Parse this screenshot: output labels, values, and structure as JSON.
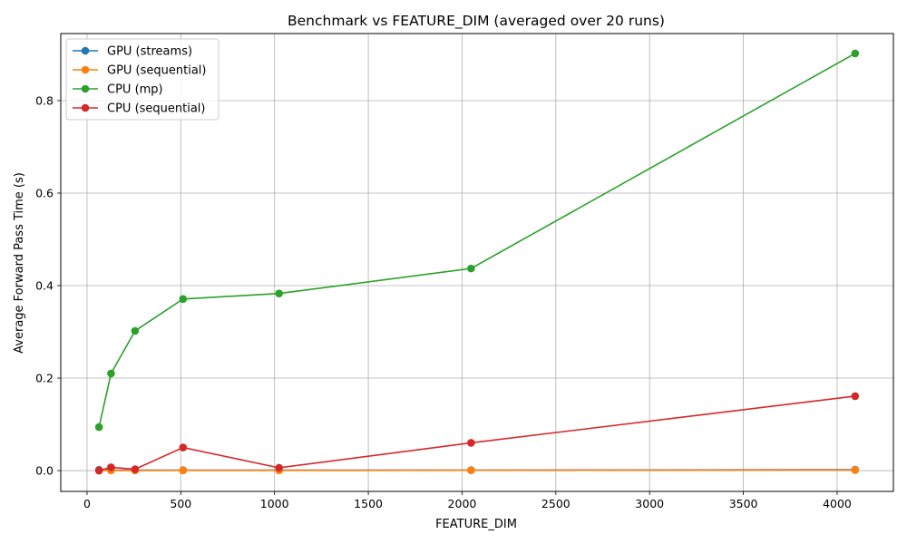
{
  "chart_data": {
    "type": "line",
    "title": "Benchmark vs FEATURE_DIM (averaged over 20 runs)",
    "xlabel": "FEATURE_DIM",
    "ylabel": "Average Forward Pass Time (s)",
    "xlim": [
      -140,
      4300
    ],
    "ylim": [
      -0.045,
      0.945
    ],
    "xticks": [
      0,
      500,
      1000,
      1500,
      2000,
      2500,
      3000,
      3500,
      4000
    ],
    "xtick_labels": [
      "0",
      "500",
      "1000",
      "1500",
      "2000",
      "2500",
      "3000",
      "3500",
      "4000"
    ],
    "yticks": [
      0.0,
      0.2,
      0.4,
      0.6,
      0.8
    ],
    "ytick_labels": [
      "0.0",
      "0.2",
      "0.4",
      "0.6",
      "0.8"
    ],
    "grid": true,
    "legend_position": "upper-left",
    "x": [
      64,
      128,
      256,
      512,
      1024,
      2048,
      4096
    ],
    "series": [
      {
        "name": "GPU (streams)",
        "color": "#1f77b4",
        "values": [
          0.002,
          0.001,
          0.001,
          0.001,
          0.001,
          0.001,
          0.002
        ]
      },
      {
        "name": "GPU (sequential)",
        "color": "#ff7f0e",
        "values": [
          0.0005,
          0.0003,
          0.0003,
          0.0004,
          0.0004,
          0.0008,
          0.0012
        ]
      },
      {
        "name": "CPU (mp)",
        "color": "#2ca02c",
        "values": [
          0.094,
          0.21,
          0.302,
          0.371,
          0.383,
          0.437,
          0.902
        ]
      },
      {
        "name": "CPU (sequential)",
        "color": "#d62728",
        "values": [
          0.0,
          0.007,
          0.003,
          0.05,
          0.006,
          0.06,
          0.161
        ]
      }
    ]
  }
}
